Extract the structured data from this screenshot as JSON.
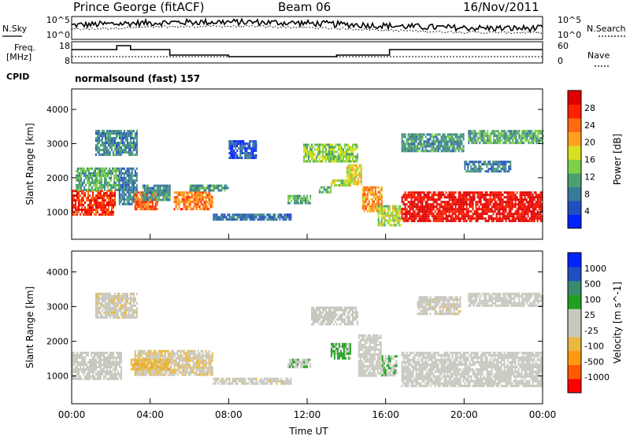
{
  "header": {
    "station": "Prince George (fitACF)",
    "beam": "Beam 06",
    "date": "16/Nov/2011"
  },
  "noise_panel": {
    "left_label": "N.Sky",
    "right_label": "N.Search",
    "left_ticks": [
      "10^5",
      "10^0"
    ],
    "right_ticks": [
      "10^5",
      "10^0"
    ]
  },
  "freq_panel": {
    "label_1": "Freq.",
    "label_2": "[MHz]",
    "left_ticks": [
      "18",
      "8"
    ],
    "right_ticks": [
      "60",
      "0"
    ],
    "right_label": "Nave",
    "cpid_label": "CPID",
    "cpid_text": "normalsound (fast) 157"
  },
  "chart_data": [
    {
      "type": "heatmap",
      "title": "Power",
      "ylabel": "Slant Range [km]",
      "colorbar_label": "Power [dB]",
      "colorbar_ticks": [
        "28",
        "24",
        "20",
        "16",
        "12",
        "8",
        "4"
      ],
      "colorbar_range": [
        0,
        32
      ],
      "colors": [
        "#0022ff",
        "#2050c0",
        "#3a7a9a",
        "#4aa070",
        "#7ed048",
        "#d8e020",
        "#ffa020",
        "#ff6a10",
        "#ff2000",
        "#e00000"
      ],
      "ylim": [
        200,
        4600
      ],
      "y_ticks": [
        "1000",
        "2000",
        "3000",
        "4000"
      ],
      "xlim": [
        "00:00",
        "24:00"
      ],
      "x_ticks": [
        "00:00",
        "04:00",
        "08:00",
        "12:00",
        "16:00",
        "20:00",
        "00:00"
      ],
      "regions": [
        {
          "t": [
            0,
            2.2
          ],
          "r": [
            900,
            1650
          ],
          "p": 27
        },
        {
          "t": [
            0.2,
            2.4
          ],
          "r": [
            1650,
            2300
          ],
          "p": 12
        },
        {
          "t": [
            1.2,
            3.3
          ],
          "r": [
            2700,
            3400
          ],
          "p": 9
        },
        {
          "t": [
            2.4,
            3.3
          ],
          "r": [
            1200,
            2300
          ],
          "p": 8
        },
        {
          "t": [
            3.2,
            4.4
          ],
          "r": [
            1050,
            1600
          ],
          "p": 24
        },
        {
          "t": [
            3.6,
            5.0
          ],
          "r": [
            1350,
            1800
          ],
          "p": 10
        },
        {
          "t": [
            5.2,
            7.2
          ],
          "r": [
            1050,
            1600
          ],
          "p": 23
        },
        {
          "t": [
            6.0,
            8.0
          ],
          "r": [
            1600,
            1800
          ],
          "p": 10
        },
        {
          "t": [
            7.2,
            11.2
          ],
          "r": [
            780,
            950
          ],
          "p": 7
        },
        {
          "t": [
            8.0,
            9.4
          ],
          "r": [
            2600,
            3100
          ],
          "p": 5
        },
        {
          "t": [
            11.0,
            12.2
          ],
          "r": [
            1250,
            1500
          ],
          "p": 12
        },
        {
          "t": [
            11.8,
            14.6
          ],
          "r": [
            2500,
            3000
          ],
          "p": 15
        },
        {
          "t": [
            12.6,
            13.2
          ],
          "r": [
            1550,
            1750
          ],
          "p": 12
        },
        {
          "t": [
            13.2,
            14.2
          ],
          "r": [
            1750,
            1950
          ],
          "p": 16
        },
        {
          "t": [
            14.0,
            14.8
          ],
          "r": [
            1800,
            2400
          ],
          "p": 18
        },
        {
          "t": [
            14.8,
            15.8
          ],
          "r": [
            1000,
            1750
          ],
          "p": 22
        },
        {
          "t": [
            15.6,
            16.8
          ],
          "r": [
            600,
            1200
          ],
          "p": 16
        },
        {
          "t": [
            16.8,
            24.0
          ],
          "r": [
            750,
            1600
          ],
          "p": 30
        },
        {
          "t": [
            16.8,
            20.0
          ],
          "r": [
            2800,
            3300
          ],
          "p": 10
        },
        {
          "t": [
            20.0,
            22.4
          ],
          "r": [
            2200,
            2500
          ],
          "p": 8
        },
        {
          "t": [
            20.2,
            24.0
          ],
          "r": [
            3000,
            3400
          ],
          "p": 12
        }
      ]
    },
    {
      "type": "heatmap",
      "title": "Velocity",
      "ylabel": "Slant Range [km]",
      "colorbar_label": "Velocity [m s^-1]",
      "colorbar_ticks": [
        "1000",
        "500",
        "100",
        "25",
        "-25",
        "-100",
        "-500",
        "-1000"
      ],
      "colorbar_range": [
        -1250,
        1250
      ],
      "colors": [
        "#ff0000",
        "#ff5a00",
        "#ff9a10",
        "#e8b840",
        "#c8c8c0",
        "#c8c8c0",
        "#20a020",
        "#3a8a70",
        "#2050c0",
        "#0022ff"
      ],
      "ylim": [
        200,
        4600
      ],
      "y_ticks": [
        "1000",
        "2000",
        "3000",
        "4000"
      ],
      "xlim": [
        "00:00",
        "24:00"
      ],
      "x_ticks": [
        "00:00",
        "04:00",
        "08:00",
        "12:00",
        "16:00",
        "20:00",
        "00:00"
      ],
      "regions": [
        {
          "t": [
            0,
            2.5
          ],
          "r": [
            900,
            1700
          ],
          "v": 0
        },
        {
          "t": [
            1.2,
            3.3
          ],
          "r": [
            2700,
            3400
          ],
          "v": -150
        },
        {
          "t": [
            3.2,
            7.2
          ],
          "r": [
            1050,
            1750
          ],
          "v": -200
        },
        {
          "t": [
            3.0,
            5.0
          ],
          "r": [
            1200,
            1500
          ],
          "v": -400
        },
        {
          "t": [
            7.2,
            11.2
          ],
          "r": [
            780,
            950
          ],
          "v": -120
        },
        {
          "t": [
            11.0,
            12.2
          ],
          "r": [
            1250,
            1500
          ],
          "v": 150
        },
        {
          "t": [
            12.2,
            14.6
          ],
          "r": [
            2500,
            3000
          ],
          "v": 0
        },
        {
          "t": [
            13.2,
            14.2
          ],
          "r": [
            1500,
            1950
          ],
          "v": 300
        },
        {
          "t": [
            14.6,
            15.8
          ],
          "r": [
            1000,
            2200
          ],
          "v": 10
        },
        {
          "t": [
            15.8,
            16.6
          ],
          "r": [
            1000,
            1600
          ],
          "v": 200
        },
        {
          "t": [
            16.8,
            24.0
          ],
          "r": [
            700,
            1700
          ],
          "v": 0
        },
        {
          "t": [
            17.6,
            19.8
          ],
          "r": [
            2800,
            3300
          ],
          "v": -120
        },
        {
          "t": [
            20.2,
            24.0
          ],
          "r": [
            3000,
            3400
          ],
          "v": -100
        }
      ]
    }
  ],
  "x_axis_label": "Time UT"
}
